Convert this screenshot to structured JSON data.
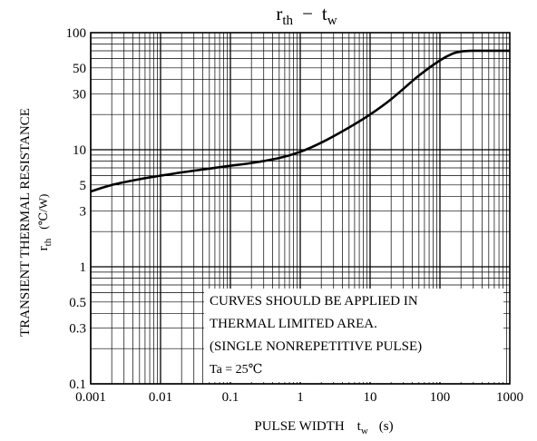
{
  "chart_data": {
    "type": "line",
    "title": {
      "main": "r",
      "main_sub": "th",
      "sep": "−",
      "main2": "t",
      "main2_sub": "w"
    },
    "ylabel": {
      "line1": "TRANSIENT THERMAL RESISTANCE",
      "line2_main": "r",
      "line2_sub": "th",
      "line2_unit": "(℃/W)"
    },
    "xlabel": {
      "text": "PULSE WIDTH",
      "sym": "t",
      "sym_sub": "w",
      "unit": "(s)"
    },
    "x_scale": "log",
    "y_scale": "log",
    "xlim": [
      0.001,
      1000
    ],
    "ylim": [
      0.1,
      100
    ],
    "x_ticks": [
      "0.001",
      "0.01",
      "0.1",
      "1",
      "10",
      "100",
      "1000"
    ],
    "y_ticks": [
      "0.1",
      "0.3",
      "0.5",
      "1",
      "3",
      "5",
      "10",
      "30",
      "50",
      "100"
    ],
    "grid": true,
    "series": [
      {
        "x": [
          0.001,
          0.002,
          0.005,
          0.01,
          0.02,
          0.05,
          0.1,
          0.2,
          0.5,
          1,
          2,
          5,
          10,
          20,
          50,
          100,
          150,
          200,
          300,
          500,
          1000
        ],
        "y": [
          4.4,
          5.0,
          5.6,
          6.0,
          6.4,
          6.9,
          7.3,
          7.7,
          8.5,
          9.6,
          11.5,
          15.5,
          20,
          27,
          43,
          58,
          66,
          69,
          70,
          70,
          70
        ]
      }
    ],
    "annotation": {
      "lines": [
        "CURVES SHOULD BE APPLIED IN",
        "THERMAL LIMITED AREA.",
        "(SINGLE NONREPETITIVE PULSE)",
        "Ta = 25℃"
      ]
    }
  }
}
